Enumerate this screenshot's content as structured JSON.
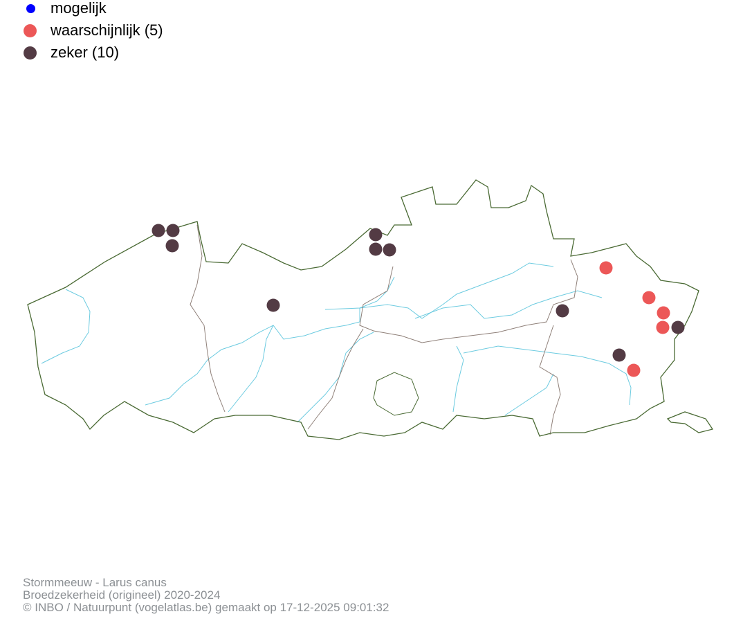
{
  "legend": [
    {
      "label": "mogelijk",
      "color": "#0000ff"
    },
    {
      "label": "waarschijnlijk (5)",
      "color": "#ec5757"
    },
    {
      "label": "zeker (10)",
      "color": "#533b44"
    }
  ],
  "map": {
    "region": "Vlaanderen",
    "border_color": "#4a6a34",
    "province_border_color": "#8f8079",
    "river_color": "#6ccbe0",
    "observations": {
      "waarschijnlijk": 5,
      "zeker": 10
    }
  },
  "footer": {
    "species": "Stormmeeuw - Larus canus",
    "subtitle": "Broedzekerheid (origineel) 2020-2024",
    "credit": "© INBO / Natuurpunt (vogelatlas.be) gemaakt op 17-12-2025 09:01:32"
  }
}
